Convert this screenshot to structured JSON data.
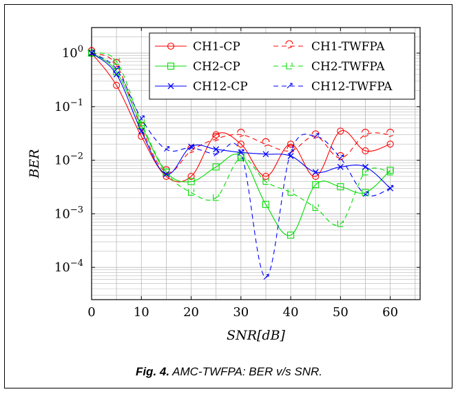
{
  "caption": {
    "label": "Fig. 4.",
    "text": "AMC-TWFPA: BER v/s SNR."
  },
  "chart_data": {
    "type": "line",
    "xlabel": "SNR[dB]",
    "ylabel": "BER",
    "xlim": [
      0,
      66
    ],
    "ylim": [
      2.5e-05,
      3
    ],
    "yscale": "log",
    "grid": true,
    "legend_position": "top-right",
    "x_ticks": [
      0,
      10,
      20,
      30,
      40,
      50,
      60
    ],
    "y_ticks": [
      {
        "value": 0.0001,
        "base": "10",
        "exp": "−4"
      },
      {
        "value": 0.001,
        "base": "10",
        "exp": "−3"
      },
      {
        "value": 0.01,
        "base": "10",
        "exp": "−2"
      },
      {
        "value": 0.1,
        "base": "10",
        "exp": "−1"
      },
      {
        "value": 1,
        "base": "10",
        "exp": "0"
      }
    ],
    "x": [
      0,
      5,
      10,
      15,
      20,
      25,
      30,
      35,
      40,
      45,
      50,
      55,
      60
    ],
    "series": [
      {
        "name": "CH1-CP",
        "color": "#ff0000",
        "dash": "solid",
        "marker": "circle",
        "values": [
          1.0,
          0.25,
          0.028,
          0.005,
          0.005,
          0.03,
          0.02,
          0.005,
          0.02,
          0.005,
          0.035,
          0.015,
          0.02
        ]
      },
      {
        "name": "CH1-TWFPA",
        "color": "#ff0000",
        "dash": "dashed",
        "marker": "ch1twfpa",
        "values": [
          1.0,
          0.6,
          0.04,
          0.006,
          0.015,
          0.025,
          0.03,
          0.02,
          0.015,
          0.028,
          0.011,
          0.03,
          0.03
        ]
      },
      {
        "name": "CH2-CP",
        "color": "#00dd00",
        "dash": "solid",
        "marker": "square",
        "values": [
          1.0,
          0.45,
          0.045,
          0.006,
          0.004,
          0.0075,
          0.012,
          0.0015,
          0.0004,
          0.0035,
          0.0032,
          0.0025,
          0.0065
        ]
      },
      {
        "name": "CH2-TWFPA",
        "color": "#00dd00",
        "dash": "dashed",
        "marker": "ch2twfpa",
        "values": [
          1.0,
          0.7,
          0.05,
          0.006,
          0.0025,
          0.002,
          0.011,
          0.004,
          0.0025,
          0.0013,
          0.00065,
          0.006,
          0.006
        ]
      },
      {
        "name": "CH12-CP",
        "color": "#0000ff",
        "dash": "solid",
        "marker": "x",
        "values": [
          1.0,
          0.4,
          0.035,
          0.0055,
          0.018,
          0.016,
          0.014,
          0.013,
          0.012,
          0.006,
          0.0075,
          0.0075,
          0.003
        ]
      },
      {
        "name": "CH12-TWFPA",
        "color": "#0000ff",
        "dash": "dashed",
        "marker": "ch12twfpa",
        "values": [
          1.0,
          0.5,
          0.06,
          0.016,
          0.017,
          0.013,
          0.014,
          6.5e-05,
          0.014,
          0.028,
          0.011,
          0.0023,
          0.003
        ]
      }
    ]
  }
}
